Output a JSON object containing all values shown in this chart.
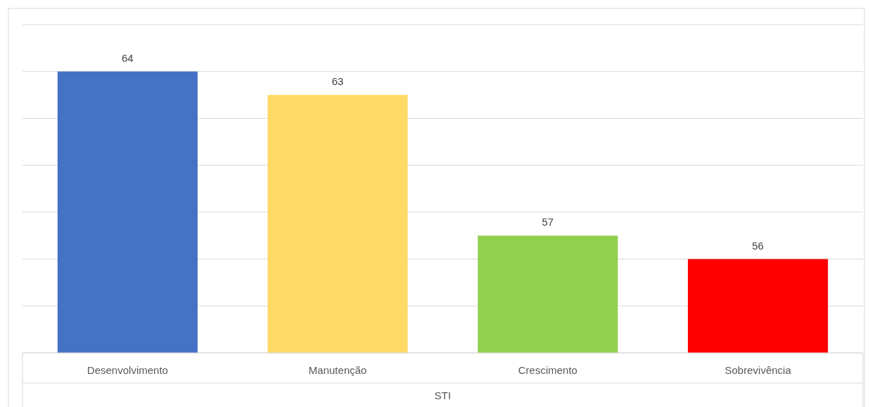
{
  "chart_data": {
    "type": "bar",
    "xlabel": "STI",
    "categories": [
      "Desenvolvimento",
      "Manutenção",
      "Crescimento",
      "Sobrevivência"
    ],
    "values": [
      64,
      63,
      57,
      56
    ],
    "colors": [
      "#4472c4",
      "#ffd966",
      "#92d050",
      "#ff0000"
    ],
    "ylim": [
      52,
      66
    ],
    "yticks": [
      {
        "value": 52,
        "label": null
      },
      {
        "value": 54,
        "label": null
      },
      {
        "value": 56,
        "label": null
      },
      {
        "value": 58,
        "label": null
      },
      {
        "value": 60,
        "label": null
      },
      {
        "value": 62,
        "label": null
      },
      {
        "value": 64,
        "label": null
      },
      {
        "value": 66,
        "label": null
      }
    ],
    "tick_labels": "x",
    "grid": "y",
    "data_labels": true
  }
}
